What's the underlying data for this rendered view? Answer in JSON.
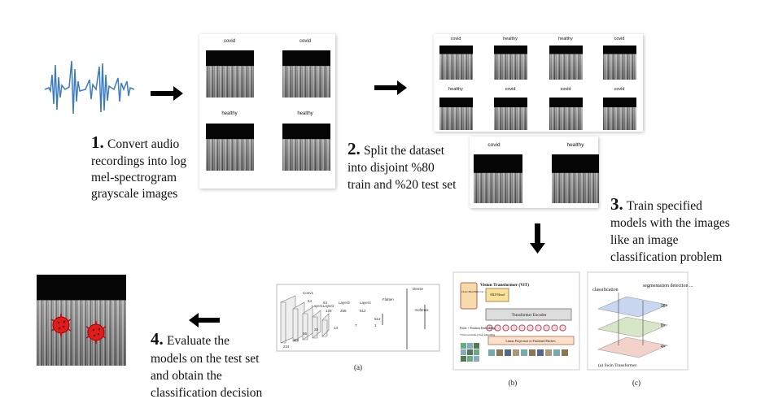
{
  "steps": [
    {
      "number": "1.",
      "lines": [
        "Convert audio",
        "recordings into log",
        "mel-spectrogram",
        "grayscale images"
      ]
    },
    {
      "number": "2.",
      "lines": [
        "Split the  dataset",
        "into disjoint %80",
        "train and %20 test set"
      ]
    },
    {
      "number": "3.",
      "lines": [
        "Train specified",
        "models with the images",
        "like an image",
        "classification problem"
      ]
    },
    {
      "number": "4.",
      "lines": [
        "Evaluate the",
        "models on the test set",
        "and obtain the",
        "classification decision"
      ]
    }
  ],
  "conversion_panel": {
    "labels": [
      "covid",
      "covid",
      "healthy",
      "healthy"
    ]
  },
  "split_panel": {
    "train_labels": [
      "covid",
      "healthy",
      "healthy",
      "covid",
      "healthy",
      "covid",
      "covid",
      "covid"
    ],
    "test_labels": [
      "covid",
      "healthy"
    ]
  },
  "models": {
    "resnet": {
      "caption": "(a)",
      "labels": [
        "Conv1",
        "64",
        "Layer1Layer2",
        "64",
        "128",
        "Layer3",
        "256",
        "Layer4",
        "512",
        "Flatten",
        "Dense",
        "Softmax",
        "224",
        "112",
        "56",
        "28",
        "14",
        "7",
        "512",
        "1"
      ]
    },
    "vit": {
      "caption": "(b)",
      "title": "Vision Transformer (ViT)",
      "mlp_head": "MLP Head",
      "encoder": "Transformer Encoder",
      "projection": "Linear Projection of Flattened Patches",
      "classes": "Class Bird Ball Car ...",
      "embedding": "Patch + Position Embedding",
      "extra": "* Extra learnable [class] embedding"
    },
    "swin": {
      "caption": "(c)",
      "classification": "classification",
      "segmentation": "segmentation detection ...",
      "scales": [
        "16×",
        "8×",
        "4×"
      ],
      "name": "(a) Swin Transformer"
    }
  }
}
